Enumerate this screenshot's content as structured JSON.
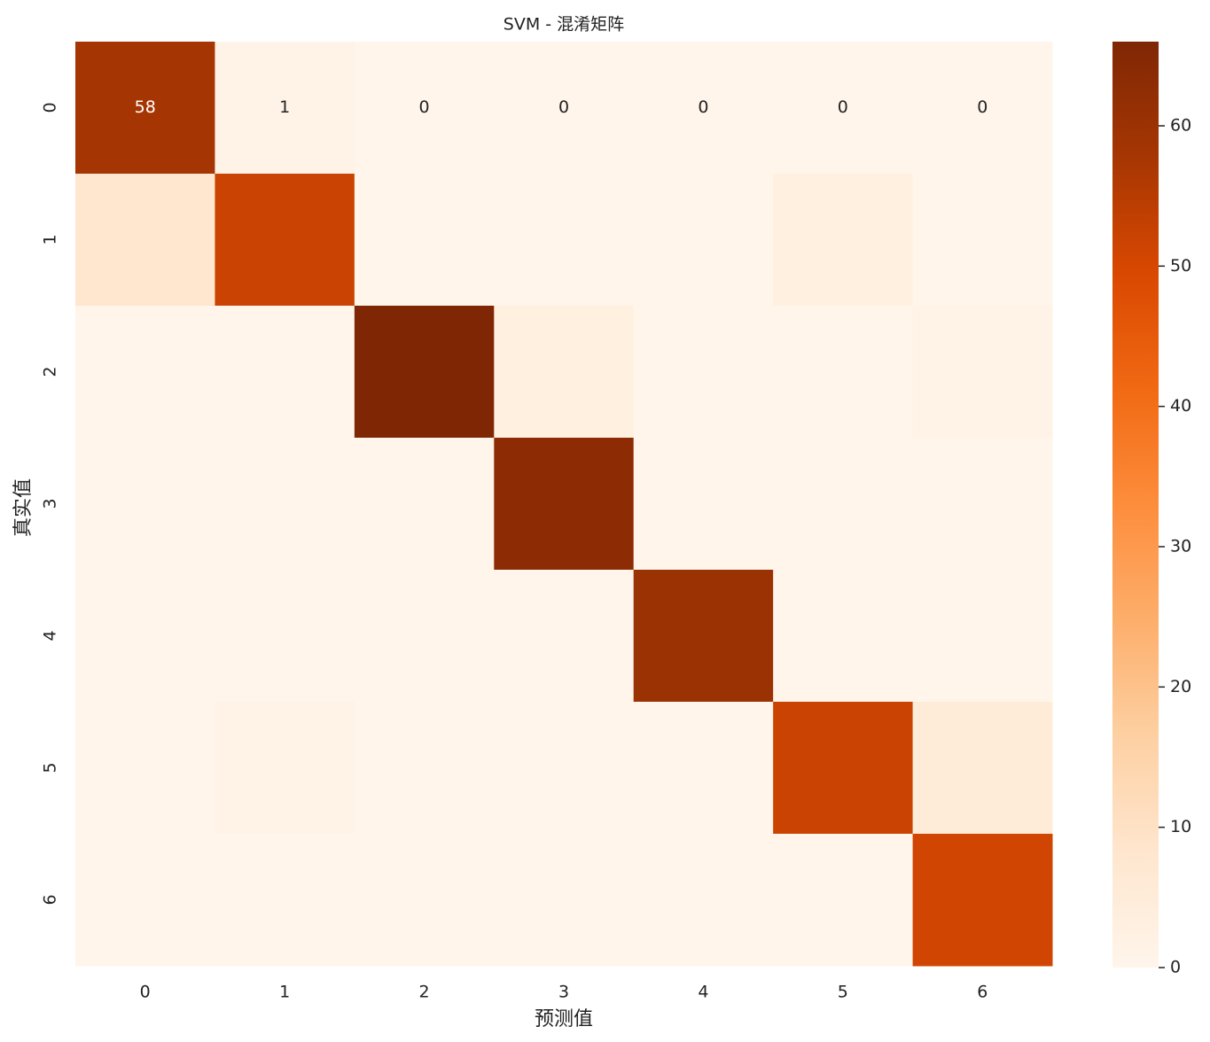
{
  "chart_data": {
    "type": "heatmap",
    "title": "SVM - 混淆矩阵",
    "x_label": "预测值",
    "y_label": "真实值",
    "x_categories": [
      "0",
      "1",
      "2",
      "3",
      "4",
      "5",
      "6"
    ],
    "y_categories": [
      "0",
      "1",
      "2",
      "3",
      "4",
      "5",
      "6"
    ],
    "values": [
      [
        58,
        1,
        0,
        0,
        0,
        0,
        0
      ],
      [
        8,
        52,
        0,
        0,
        0,
        3,
        0
      ],
      [
        0,
        0,
        66,
        3,
        0,
        0,
        1
      ],
      [
        0,
        0,
        0,
        63,
        0,
        0,
        0
      ],
      [
        0,
        0,
        0,
        0,
        60,
        0,
        0
      ],
      [
        0,
        1,
        0,
        0,
        0,
        52,
        5
      ],
      [
        0,
        0,
        0,
        0,
        0,
        0,
        51
      ]
    ],
    "value_labels": [
      [
        "58",
        "1",
        "0",
        "0",
        "0",
        "0",
        "0"
      ],
      null,
      null,
      null,
      null,
      null,
      null
    ],
    "colormap": [
      "#fff5eb",
      "#fee6ce",
      "#fdd0a2",
      "#fdae6b",
      "#fd8d3c",
      "#f16913",
      "#d94801",
      "#a63603",
      "#7f2704"
    ],
    "clim": [
      0,
      66
    ],
    "cticks": [
      0,
      10,
      20,
      30,
      40,
      50,
      60
    ]
  }
}
